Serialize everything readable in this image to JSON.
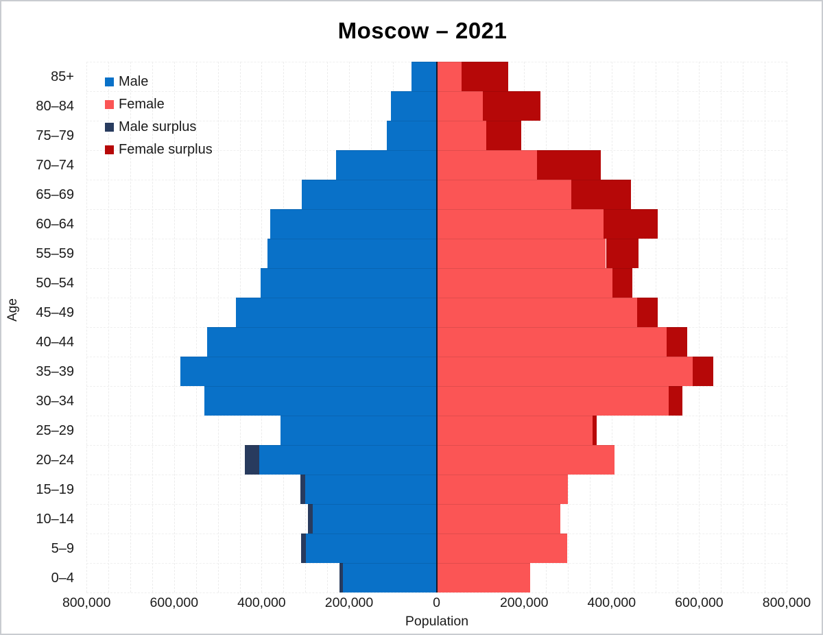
{
  "chart_data": {
    "type": "bar",
    "subtype": "population_pyramid",
    "title": "Moscow – 2021",
    "xlabel": "Population",
    "ylabel": "Age",
    "categories": [
      "0–4",
      "5–9",
      "10–14",
      "15–19",
      "20–24",
      "25–29",
      "30–34",
      "35–39",
      "40–44",
      "45–49",
      "50–54",
      "55–59",
      "60–64",
      "65–69",
      "70–74",
      "75–79",
      "80–84",
      "85+"
    ],
    "series": [
      {
        "name": "Male",
        "side": "left",
        "color": "#0971c8",
        "values": [
          222000,
          310000,
          294000,
          311000,
          438000,
          357000,
          530000,
          585000,
          525000,
          459000,
          402000,
          387000,
          381000,
          308000,
          229000,
          114000,
          105000,
          57000
        ]
      },
      {
        "name": "Female",
        "side": "right",
        "color": "#fb5555",
        "values": [
          214000,
          298000,
          283000,
          300000,
          406000,
          366000,
          561000,
          632000,
          572000,
          505000,
          448000,
          462000,
          505000,
          445000,
          376000,
          193000,
          237000,
          164000
        ]
      },
      {
        "name": "Male surplus",
        "side": "left-tip",
        "color": "#283b5e",
        "values": [
          8000,
          12000,
          11000,
          11000,
          32000,
          0,
          0,
          0,
          0,
          0,
          0,
          0,
          0,
          0,
          0,
          0,
          0,
          0
        ]
      },
      {
        "name": "Female surplus",
        "side": "right-tip",
        "color": "#b60808",
        "values": [
          0,
          0,
          0,
          0,
          0,
          9000,
          31000,
          47000,
          47000,
          46000,
          46000,
          75000,
          124000,
          137000,
          147000,
          79000,
          132000,
          107000
        ]
      }
    ],
    "x_ticks": [
      {
        "value": -800000,
        "label": "800,000"
      },
      {
        "value": -600000,
        "label": "600,000"
      },
      {
        "value": -400000,
        "label": "400,000"
      },
      {
        "value": -200000,
        "label": "200,000"
      },
      {
        "value": 0,
        "label": "0"
      },
      {
        "value": 200000,
        "label": "200,000"
      },
      {
        "value": 400000,
        "label": "400,000"
      },
      {
        "value": 600000,
        "label": "600,000"
      },
      {
        "value": 800000,
        "label": "800,000"
      }
    ],
    "xlim": [
      -815000,
      815000
    ],
    "grid": true,
    "gridline_interval": 50000,
    "legend_position": "top-left-inside",
    "legend": [
      {
        "label": "Male",
        "color": "#0971c8"
      },
      {
        "label": "Female",
        "color": "#fb5555"
      },
      {
        "label": "Male surplus",
        "color": "#283b5e"
      },
      {
        "label": "Female surplus",
        "color": "#b60808"
      }
    ]
  }
}
